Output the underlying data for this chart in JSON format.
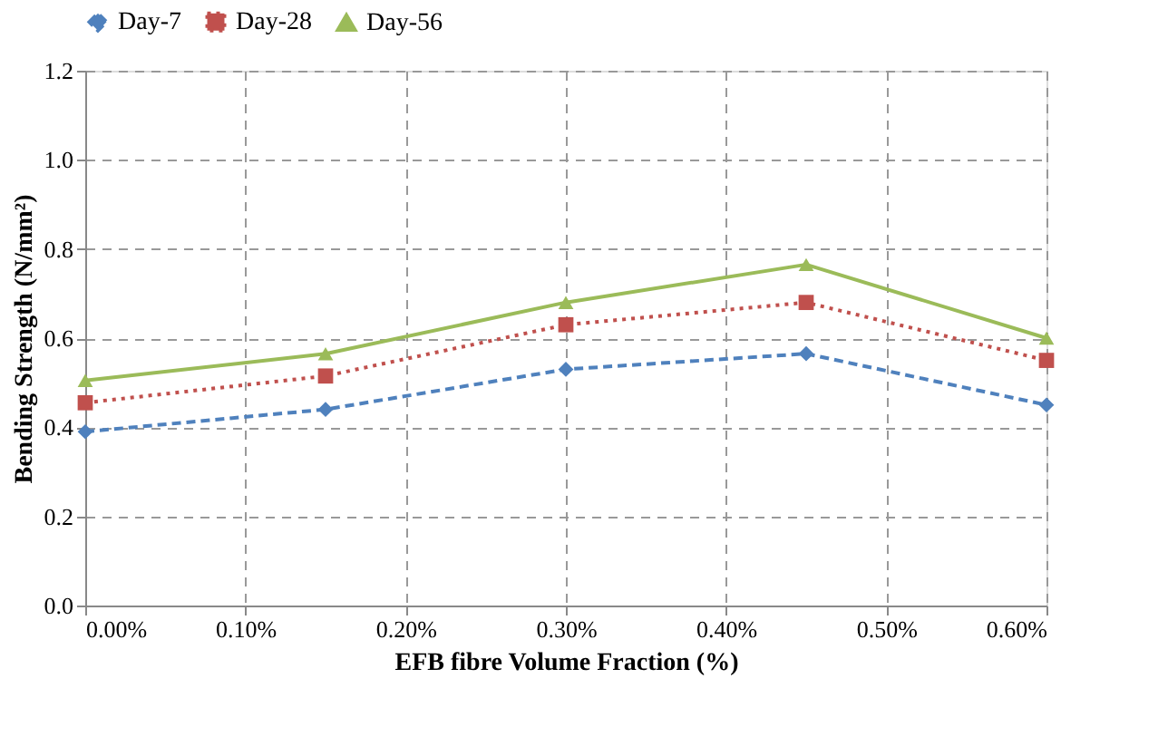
{
  "chart_data": {
    "type": "line",
    "xlabel": "EFB fibre Volume Fraction (%)",
    "ylabel": "Bending Strength (N/mm²)",
    "x": [
      0,
      0.15,
      0.3,
      0.45,
      0.6
    ],
    "series": [
      {
        "name": "Day-7",
        "color": "#4f81bd",
        "values": [
          0.39,
          0.44,
          0.53,
          0.565,
          0.45
        ],
        "marker": "diamond",
        "line_style": "dashed"
      },
      {
        "name": "Day-28",
        "color": "#c0504d",
        "values": [
          0.455,
          0.515,
          0.63,
          0.68,
          0.55
        ],
        "marker": "square",
        "line_style": "dotted"
      },
      {
        "name": "Day-56",
        "color": "#9bbb59",
        "values": [
          0.505,
          0.565,
          0.68,
          0.765,
          0.6
        ],
        "marker": "triangle",
        "line_style": "solid"
      }
    ],
    "xlim": [
      0,
      0.6
    ],
    "xticks": [
      {
        "value": 0,
        "label": "0.00%"
      },
      {
        "value": 0.1,
        "label": "0.10%"
      },
      {
        "value": 0.2,
        "label": "0.20%"
      },
      {
        "value": 0.3,
        "label": "0.30%"
      },
      {
        "value": 0.4,
        "label": "0.40%"
      },
      {
        "value": 0.5,
        "label": "0.50%"
      },
      {
        "value": 0.6,
        "label": "0.60%"
      }
    ],
    "ylim": [
      0,
      1.2
    ],
    "yticks": [
      {
        "value": 0,
        "label": "0.0"
      },
      {
        "value": 0.2,
        "label": "0.2"
      },
      {
        "value": 0.4,
        "label": "0.4"
      },
      {
        "value": 0.6,
        "label": "0.6"
      },
      {
        "value": 0.8,
        "label": "0.8"
      },
      {
        "value": 1.0,
        "label": "1.0"
      },
      {
        "value": 1.2,
        "label": "1.2"
      }
    ],
    "grid": true,
    "legend": "top"
  }
}
